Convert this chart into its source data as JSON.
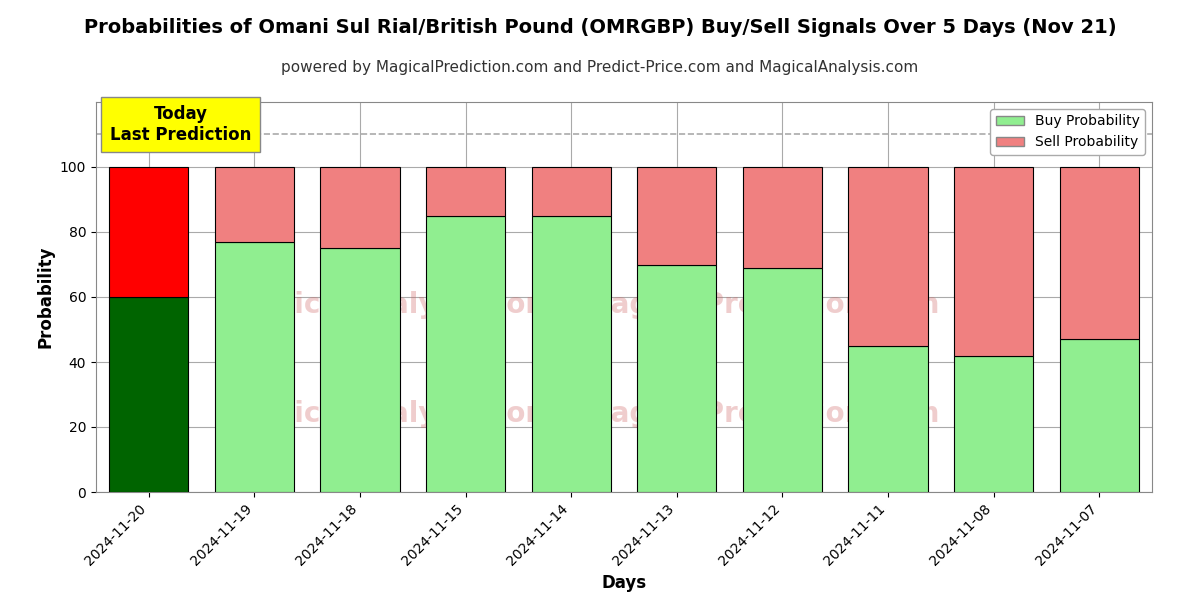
{
  "title": "Probabilities of Omani Sul Rial/British Pound (OMRGBP) Buy/Sell Signals Over 5 Days (Nov 21)",
  "subtitle": "powered by MagicalPrediction.com and Predict-Price.com and MagicalAnalysis.com",
  "xlabel": "Days",
  "ylabel": "Probability",
  "categories": [
    "2024-11-20",
    "2024-11-19",
    "2024-11-18",
    "2024-11-15",
    "2024-11-14",
    "2024-11-13",
    "2024-11-12",
    "2024-11-11",
    "2024-11-08",
    "2024-11-07"
  ],
  "buy_values": [
    60,
    77,
    75,
    85,
    85,
    70,
    69,
    45,
    42,
    47
  ],
  "sell_values": [
    40,
    23,
    25,
    15,
    15,
    30,
    31,
    55,
    58,
    53
  ],
  "buy_color_special": "#006400",
  "buy_color_normal": "#90EE90",
  "sell_color_special": "#FF0000",
  "sell_color_normal": "#F08080",
  "bar_edge_color": "#000000",
  "ylim": [
    0,
    120
  ],
  "yticks": [
    0,
    20,
    40,
    60,
    80,
    100
  ],
  "dashed_line_y": 110,
  "today_label_text": "Today\nLast Prediction",
  "today_label_bg": "#FFFF00",
  "legend_buy_label": "Buy Probability",
  "legend_sell_label": "Sell Probability",
  "title_fontsize": 14,
  "subtitle_fontsize": 11,
  "axis_label_fontsize": 12,
  "tick_fontsize": 10,
  "background_color": "#ffffff",
  "plot_bg_color": "#ffffff",
  "grid_color": "#aaaaaa"
}
